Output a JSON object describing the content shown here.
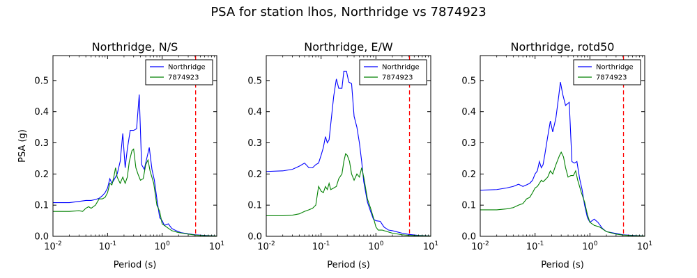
{
  "figure": {
    "suptitle": "PSA for station lhos, Northridge vs 7874923"
  },
  "colors": {
    "series_a": "#0000ff",
    "series_b": "#008000",
    "marker": "#ff0000",
    "axes": "#000000"
  },
  "chart_data": [
    {
      "type": "line",
      "title": "Northridge, N/S",
      "xlabel": "Period (s)",
      "ylabel": "PSA (g)",
      "xscale": "log",
      "xlim": [
        0.01,
        10
      ],
      "ylim": [
        0,
        0.58
      ],
      "xticks": [
        0.01,
        0.1,
        1,
        10
      ],
      "yticks": [
        0.0,
        0.1,
        0.2,
        0.3,
        0.4,
        0.5
      ],
      "legend": "top-right",
      "vline": 4.1,
      "series": [
        {
          "name": "Northridge",
          "color": "blue",
          "points": [
            [
              0.01,
              0.108
            ],
            [
              0.02,
              0.108
            ],
            [
              0.03,
              0.112
            ],
            [
              0.04,
              0.115
            ],
            [
              0.05,
              0.115
            ],
            [
              0.06,
              0.118
            ],
            [
              0.07,
              0.122
            ],
            [
              0.08,
              0.13
            ],
            [
              0.09,
              0.14
            ],
            [
              0.1,
              0.155
            ],
            [
              0.11,
              0.185
            ],
            [
              0.12,
              0.17
            ],
            [
              0.13,
              0.18
            ],
            [
              0.15,
              0.2
            ],
            [
              0.17,
              0.24
            ],
            [
              0.19,
              0.33
            ],
            [
              0.21,
              0.22
            ],
            [
              0.23,
              0.28
            ],
            [
              0.26,
              0.34
            ],
            [
              0.3,
              0.34
            ],
            [
              0.34,
              0.345
            ],
            [
              0.38,
              0.455
            ],
            [
              0.42,
              0.23
            ],
            [
              0.47,
              0.215
            ],
            [
              0.53,
              0.255
            ],
            [
              0.58,
              0.285
            ],
            [
              0.65,
              0.215
            ],
            [
              0.72,
              0.18
            ],
            [
              0.8,
              0.12
            ],
            [
              0.9,
              0.06
            ],
            [
              1.0,
              0.05
            ],
            [
              1.1,
              0.035
            ],
            [
              1.3,
              0.04
            ],
            [
              1.5,
              0.025
            ],
            [
              1.8,
              0.018
            ],
            [
              2.2,
              0.012
            ],
            [
              3.0,
              0.008
            ],
            [
              4.0,
              0.005
            ],
            [
              6.0,
              0.003
            ],
            [
              10,
              0.001
            ]
          ]
        },
        {
          "name": "7874923",
          "color": "green",
          "points": [
            [
              0.01,
              0.08
            ],
            [
              0.02,
              0.08
            ],
            [
              0.03,
              0.082
            ],
            [
              0.035,
              0.08
            ],
            [
              0.04,
              0.09
            ],
            [
              0.045,
              0.095
            ],
            [
              0.05,
              0.09
            ],
            [
              0.06,
              0.1
            ],
            [
              0.07,
              0.12
            ],
            [
              0.08,
              0.12
            ],
            [
              0.09,
              0.125
            ],
            [
              0.1,
              0.14
            ],
            [
              0.11,
              0.17
            ],
            [
              0.12,
              0.165
            ],
            [
              0.13,
              0.19
            ],
            [
              0.14,
              0.22
            ],
            [
              0.15,
              0.19
            ],
            [
              0.17,
              0.17
            ],
            [
              0.19,
              0.19
            ],
            [
              0.21,
              0.17
            ],
            [
              0.23,
              0.19
            ],
            [
              0.25,
              0.24
            ],
            [
              0.28,
              0.275
            ],
            [
              0.3,
              0.28
            ],
            [
              0.33,
              0.22
            ],
            [
              0.36,
              0.2
            ],
            [
              0.4,
              0.18
            ],
            [
              0.45,
              0.185
            ],
            [
              0.5,
              0.23
            ],
            [
              0.55,
              0.245
            ],
            [
              0.6,
              0.21
            ],
            [
              0.7,
              0.17
            ],
            [
              0.8,
              0.1
            ],
            [
              0.9,
              0.08
            ],
            [
              1.0,
              0.04
            ],
            [
              1.2,
              0.03
            ],
            [
              1.5,
              0.018
            ],
            [
              2.0,
              0.012
            ],
            [
              3.0,
              0.007
            ],
            [
              4.0,
              0.004
            ],
            [
              6.0,
              0.002
            ],
            [
              10,
              0.001
            ]
          ]
        }
      ]
    },
    {
      "type": "line",
      "title": "Northridge, E/W",
      "xlabel": "Period (s)",
      "ylabel": "",
      "xscale": "log",
      "xlim": [
        0.01,
        10
      ],
      "ylim": [
        0,
        0.58
      ],
      "xticks": [
        0.01,
        0.1,
        1,
        10
      ],
      "yticks": [
        0.0,
        0.1,
        0.2,
        0.3,
        0.4,
        0.5
      ],
      "legend": "top-right",
      "vline": 4.1,
      "series": [
        {
          "name": "Northridge",
          "color": "blue",
          "points": [
            [
              0.01,
              0.208
            ],
            [
              0.02,
              0.21
            ],
            [
              0.03,
              0.215
            ],
            [
              0.04,
              0.225
            ],
            [
              0.05,
              0.235
            ],
            [
              0.06,
              0.22
            ],
            [
              0.07,
              0.22
            ],
            [
              0.08,
              0.23
            ],
            [
              0.09,
              0.235
            ],
            [
              0.1,
              0.26
            ],
            [
              0.11,
              0.285
            ],
            [
              0.12,
              0.32
            ],
            [
              0.13,
              0.3
            ],
            [
              0.14,
              0.31
            ],
            [
              0.15,
              0.36
            ],
            [
              0.17,
              0.45
            ],
            [
              0.19,
              0.505
            ],
            [
              0.21,
              0.475
            ],
            [
              0.24,
              0.475
            ],
            [
              0.26,
              0.53
            ],
            [
              0.29,
              0.53
            ],
            [
              0.32,
              0.495
            ],
            [
              0.36,
              0.49
            ],
            [
              0.4,
              0.385
            ],
            [
              0.45,
              0.35
            ],
            [
              0.5,
              0.3
            ],
            [
              0.55,
              0.24
            ],
            [
              0.6,
              0.175
            ],
            [
              0.7,
              0.11
            ],
            [
              0.8,
              0.08
            ],
            [
              0.9,
              0.055
            ],
            [
              1.0,
              0.05
            ],
            [
              1.2,
              0.048
            ],
            [
              1.4,
              0.03
            ],
            [
              1.7,
              0.02
            ],
            [
              2.0,
              0.018
            ],
            [
              3.0,
              0.01
            ],
            [
              4.0,
              0.006
            ],
            [
              6.0,
              0.003
            ],
            [
              10,
              0.001
            ]
          ]
        },
        {
          "name": "7874923",
          "color": "green",
          "points": [
            [
              0.01,
              0.066
            ],
            [
              0.02,
              0.066
            ],
            [
              0.03,
              0.068
            ],
            [
              0.04,
              0.072
            ],
            [
              0.05,
              0.08
            ],
            [
              0.06,
              0.085
            ],
            [
              0.07,
              0.09
            ],
            [
              0.08,
              0.1
            ],
            [
              0.09,
              0.16
            ],
            [
              0.1,
              0.145
            ],
            [
              0.11,
              0.14
            ],
            [
              0.12,
              0.16
            ],
            [
              0.13,
              0.15
            ],
            [
              0.14,
              0.17
            ],
            [
              0.15,
              0.15
            ],
            [
              0.17,
              0.155
            ],
            [
              0.19,
              0.16
            ],
            [
              0.21,
              0.185
            ],
            [
              0.24,
              0.2
            ],
            [
              0.26,
              0.24
            ],
            [
              0.28,
              0.265
            ],
            [
              0.3,
              0.26
            ],
            [
              0.33,
              0.24
            ],
            [
              0.36,
              0.2
            ],
            [
              0.4,
              0.18
            ],
            [
              0.45,
              0.2
            ],
            [
              0.5,
              0.19
            ],
            [
              0.55,
              0.22
            ],
            [
              0.6,
              0.19
            ],
            [
              0.7,
              0.12
            ],
            [
              0.8,
              0.09
            ],
            [
              0.9,
              0.06
            ],
            [
              1.0,
              0.03
            ],
            [
              1.1,
              0.02
            ],
            [
              1.3,
              0.02
            ],
            [
              1.6,
              0.015
            ],
            [
              2.0,
              0.01
            ],
            [
              3.0,
              0.005
            ],
            [
              4.0,
              0.003
            ],
            [
              6.0,
              0.002
            ],
            [
              10,
              0.001
            ]
          ]
        }
      ]
    },
    {
      "type": "line",
      "title": "Northridge, rotd50",
      "xlabel": "Period (s)",
      "ylabel": "",
      "xscale": "log",
      "xlim": [
        0.01,
        10
      ],
      "ylim": [
        0,
        0.58
      ],
      "xticks": [
        0.01,
        0.1,
        1,
        10
      ],
      "yticks": [
        0.0,
        0.1,
        0.2,
        0.3,
        0.4,
        0.5
      ],
      "legend": "top-right",
      "vline": 4.1,
      "series": [
        {
          "name": "Northridge",
          "color": "blue",
          "points": [
            [
              0.01,
              0.148
            ],
            [
              0.02,
              0.15
            ],
            [
              0.03,
              0.155
            ],
            [
              0.04,
              0.16
            ],
            [
              0.05,
              0.167
            ],
            [
              0.06,
              0.16
            ],
            [
              0.07,
              0.165
            ],
            [
              0.08,
              0.17
            ],
            [
              0.09,
              0.18
            ],
            [
              0.1,
              0.2
            ],
            [
              0.11,
              0.21
            ],
            [
              0.12,
              0.24
            ],
            [
              0.13,
              0.22
            ],
            [
              0.14,
              0.23
            ],
            [
              0.15,
              0.26
            ],
            [
              0.17,
              0.32
            ],
            [
              0.19,
              0.37
            ],
            [
              0.21,
              0.335
            ],
            [
              0.24,
              0.38
            ],
            [
              0.27,
              0.45
            ],
            [
              0.29,
              0.495
            ],
            [
              0.32,
              0.455
            ],
            [
              0.36,
              0.42
            ],
            [
              0.42,
              0.43
            ],
            [
              0.47,
              0.24
            ],
            [
              0.52,
              0.235
            ],
            [
              0.58,
              0.24
            ],
            [
              0.65,
              0.185
            ],
            [
              0.72,
              0.15
            ],
            [
              0.8,
              0.1
            ],
            [
              0.9,
              0.06
            ],
            [
              1.0,
              0.045
            ],
            [
              1.2,
              0.055
            ],
            [
              1.4,
              0.045
            ],
            [
              1.7,
              0.025
            ],
            [
              2.0,
              0.015
            ],
            [
              3.0,
              0.009
            ],
            [
              4.0,
              0.005
            ],
            [
              6.0,
              0.003
            ],
            [
              10,
              0.001
            ]
          ]
        },
        {
          "name": "7874923",
          "color": "green",
          "points": [
            [
              0.01,
              0.085
            ],
            [
              0.02,
              0.085
            ],
            [
              0.03,
              0.088
            ],
            [
              0.04,
              0.092
            ],
            [
              0.05,
              0.1
            ],
            [
              0.06,
              0.105
            ],
            [
              0.07,
              0.12
            ],
            [
              0.08,
              0.125
            ],
            [
              0.09,
              0.14
            ],
            [
              0.1,
              0.155
            ],
            [
              0.11,
              0.16
            ],
            [
              0.12,
              0.17
            ],
            [
              0.13,
              0.18
            ],
            [
              0.14,
              0.175
            ],
            [
              0.15,
              0.18
            ],
            [
              0.17,
              0.19
            ],
            [
              0.19,
              0.21
            ],
            [
              0.21,
              0.2
            ],
            [
              0.24,
              0.23
            ],
            [
              0.28,
              0.26
            ],
            [
              0.3,
              0.27
            ],
            [
              0.33,
              0.255
            ],
            [
              0.36,
              0.22
            ],
            [
              0.4,
              0.19
            ],
            [
              0.45,
              0.195
            ],
            [
              0.5,
              0.195
            ],
            [
              0.55,
              0.21
            ],
            [
              0.6,
              0.18
            ],
            [
              0.7,
              0.14
            ],
            [
              0.8,
              0.11
            ],
            [
              0.9,
              0.07
            ],
            [
              1.0,
              0.045
            ],
            [
              1.2,
              0.035
            ],
            [
              1.5,
              0.03
            ],
            [
              2.0,
              0.015
            ],
            [
              3.0,
              0.007
            ],
            [
              4.0,
              0.004
            ],
            [
              6.0,
              0.002
            ],
            [
              10,
              0.001
            ]
          ]
        }
      ]
    }
  ]
}
